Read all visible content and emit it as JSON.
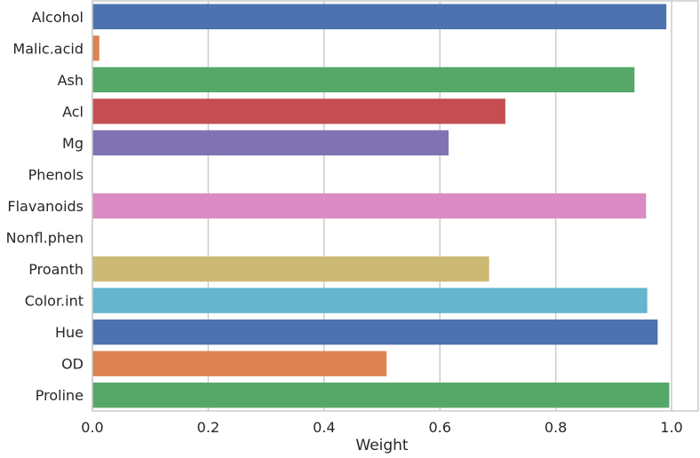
{
  "chart_data": {
    "type": "bar",
    "orientation": "horizontal",
    "categories": [
      "Alcohol",
      "Malic.acid",
      "Ash",
      "Acl",
      "Mg",
      "Phenols",
      "Flavanoids",
      "Nonfl.phen",
      "Proanth",
      "Color.int",
      "Hue",
      "OD",
      "Proline"
    ],
    "values": [
      0.991,
      0.012,
      0.936,
      0.713,
      0.615,
      0.0,
      0.956,
      0.0,
      0.685,
      0.958,
      0.976,
      0.508,
      0.996
    ],
    "colors": [
      "#4c72b0",
      "#dd8452",
      "#55a868",
      "#c44e52",
      "#8172b3",
      "#937860",
      "#da8bc3",
      "#8c8c8c",
      "#ccb974",
      "#64b5cd",
      "#4c72b0",
      "#dd8452",
      "#55a868"
    ],
    "xlabel": "Weight",
    "ylabel": "",
    "xlim": [
      0.0,
      1.0
    ],
    "xticks": [
      "0.0",
      "0.2",
      "0.4",
      "0.6",
      "0.8",
      "1.0"
    ],
    "grid": true,
    "legend": "none"
  }
}
